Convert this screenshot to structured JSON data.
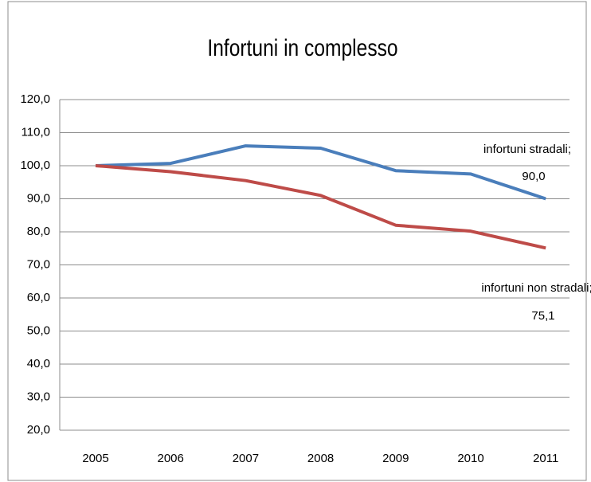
{
  "chart_data": {
    "type": "line",
    "title": "Infortuni in complesso",
    "categories": [
      "2005",
      "2006",
      "2007",
      "2008",
      "2009",
      "2010",
      "2011"
    ],
    "series": [
      {
        "name": "infortuni stradali;",
        "color": "#4a7ebb",
        "values": [
          100,
          100.7,
          106,
          105.3,
          98.5,
          97.5,
          90.0
        ],
        "value_labels": [
          null,
          null,
          null,
          null,
          null,
          null,
          "90,0"
        ]
      },
      {
        "name": "infortuni non stradali;",
        "color": "#be4b48",
        "values": [
          100,
          98.2,
          95.5,
          91,
          82,
          80.2,
          75.1
        ],
        "value_labels": [
          null,
          null,
          null,
          null,
          null,
          null,
          "75,1"
        ]
      }
    ],
    "ylim": [
      20,
      120
    ],
    "yticks": [
      {
        "value": 20,
        "label": "20,0"
      },
      {
        "value": 30,
        "label": "30,0"
      },
      {
        "value": 40,
        "label": "40,0"
      },
      {
        "value": 50,
        "label": "50,0"
      },
      {
        "value": 60,
        "label": "60,0"
      },
      {
        "value": 70,
        "label": "70,0"
      },
      {
        "value": 80,
        "label": "80,0"
      },
      {
        "value": 90,
        "label": "90,0"
      },
      {
        "value": 100,
        "label": "100,0"
      },
      {
        "value": 110,
        "label": "110,0"
      },
      {
        "value": 120,
        "label": "120,0"
      }
    ],
    "grid": true
  }
}
